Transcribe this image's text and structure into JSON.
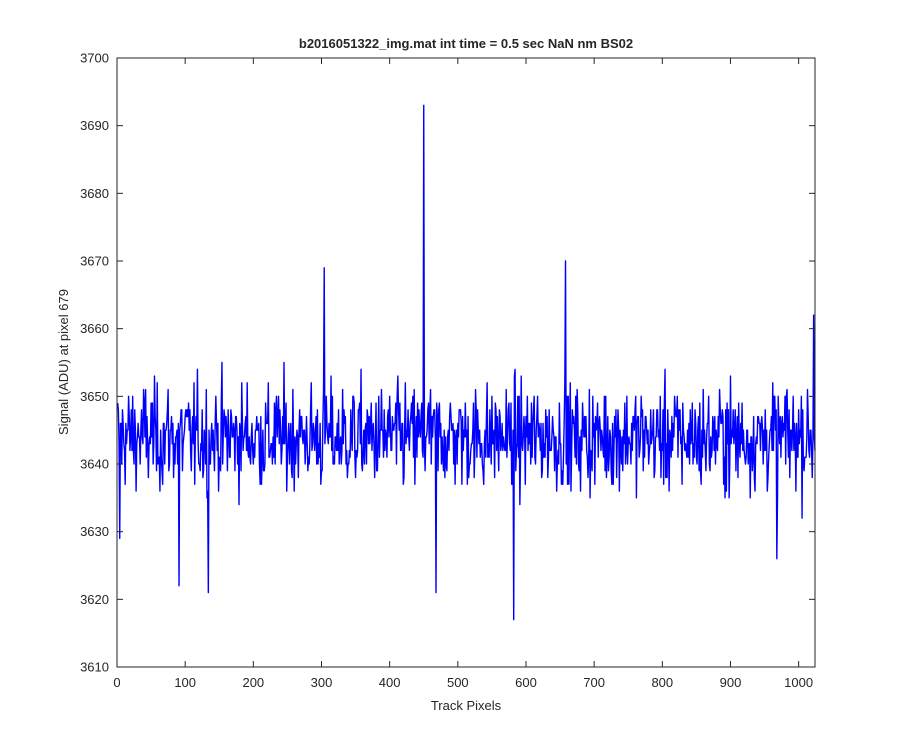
{
  "chart_data": {
    "type": "line",
    "title": "b2016051322_img.mat int time = 0.5 sec  NaN nm BS02",
    "xlabel": "Track Pixels",
    "ylabel": "Signal (ADU) at pixel 679",
    "xlim": [
      0,
      1024
    ],
    "ylim": [
      3610,
      3700
    ],
    "xticks": [
      0,
      100,
      200,
      300,
      400,
      500,
      600,
      700,
      800,
      900,
      1000
    ],
    "yticks": [
      3610,
      3620,
      3630,
      3640,
      3650,
      3660,
      3670,
      3680,
      3690,
      3700
    ],
    "grid": false,
    "legend": "none",
    "series": [
      {
        "color": "#0000ff",
        "x_start": 1,
        "x_step": 1,
        "n_points": 1024,
        "mean": 3644,
        "noise_std": 6.2,
        "notable_points": [
          {
            "x": 4,
            "y": 3629
          },
          {
            "x": 91,
            "y": 3622
          },
          {
            "x": 134,
            "y": 3621
          },
          {
            "x": 304,
            "y": 3669
          },
          {
            "x": 450,
            "y": 3693
          },
          {
            "x": 468,
            "y": 3621
          },
          {
            "x": 582,
            "y": 3617
          },
          {
            "x": 658,
            "y": 3670
          },
          {
            "x": 968,
            "y": 3626
          },
          {
            "x": 1022,
            "y": 3662
          }
        ]
      }
    ]
  }
}
